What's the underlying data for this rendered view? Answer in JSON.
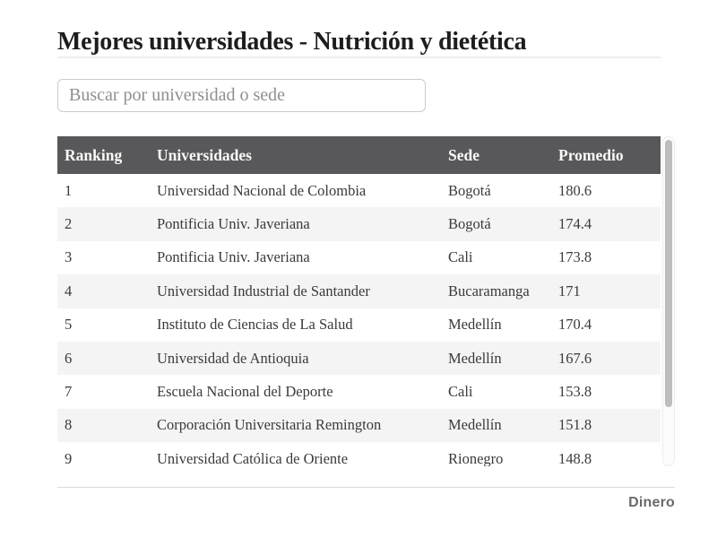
{
  "page": {
    "title": "Mejores universidades - Nutrición y dietética",
    "brand": "Dinero"
  },
  "search": {
    "placeholder": "Buscar por universidad o sede",
    "value": ""
  },
  "table": {
    "columns": [
      "Ranking",
      "Universidades",
      "Sede",
      "Promedio"
    ],
    "rows": [
      [
        "1",
        "Universidad Nacional de Colombia",
        "Bogotá",
        "180.6"
      ],
      [
        "2",
        "Pontificia Univ. Javeriana",
        "Bogotá",
        "174.4"
      ],
      [
        "3",
        "Pontificia Univ. Javeriana",
        "Cali",
        "173.8"
      ],
      [
        "4",
        "Universidad Industrial de Santander",
        "Bucaramanga",
        "171"
      ],
      [
        "5",
        "Instituto de Ciencias de La Salud",
        "Medellín",
        "170.4"
      ],
      [
        "6",
        "Universidad de Antioquia",
        "Medellín",
        "167.6"
      ],
      [
        "7",
        "Escuela Nacional del Deporte",
        "Cali",
        "153.8"
      ],
      [
        "8",
        "Corporación Universitaria Remington",
        "Medellín",
        "151.8"
      ],
      [
        "9",
        "Universidad Católica de Oriente",
        "Rionegro",
        "148.8"
      ]
    ],
    "partial_row_visible": true
  },
  "colors": {
    "header_bg": "#58585a",
    "header_text": "#fafafa",
    "zebra_row": "#f4f4f4",
    "title_text": "#1d1d1d",
    "body_text": "#3a3a3a",
    "brand_text": "#6a6a6c",
    "divider": "#ececec",
    "scrollbar_thumb": "#bdbdbd"
  }
}
